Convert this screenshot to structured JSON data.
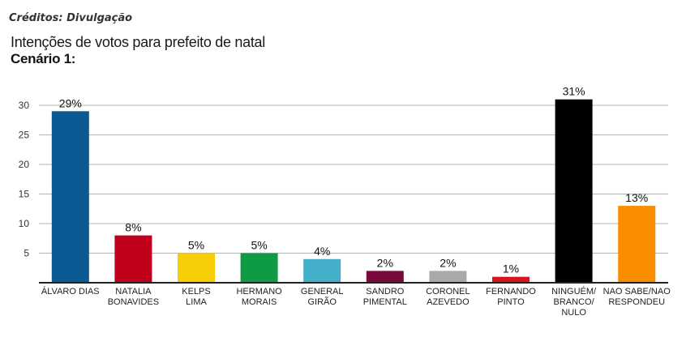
{
  "credits": "Créditos: Divulgação",
  "header": {
    "title": "Intenções de votos para prefeito de natal",
    "subtitle": "Cenário 1:"
  },
  "chart_data": {
    "type": "bar",
    "title": "Intenções de votos para prefeito de natal",
    "subtitle": "Cenário 1:",
    "xlabel": "",
    "ylabel": "",
    "ylim": [
      0,
      30
    ],
    "yticks": [
      5,
      10,
      15,
      20,
      25,
      30
    ],
    "grid": true,
    "categories": [
      [
        "ÁLVARO DIAS"
      ],
      [
        "NATALIA",
        "BONAVIDES"
      ],
      [
        "KELPS",
        "LIMA"
      ],
      [
        "HERMANO",
        "MORAIS"
      ],
      [
        "GENERAL",
        "GIRÃO"
      ],
      [
        "SANDRO",
        "PIMENTAL"
      ],
      [
        "CORONEL",
        "AZEVEDO"
      ],
      [
        "FERNANDO",
        "PINTO"
      ],
      [
        "NINGUÉM/",
        "BRANCO/",
        "NULO"
      ],
      [
        "NAO SABE/NAO",
        "RESPONDEU"
      ]
    ],
    "values": [
      29,
      8,
      5,
      5,
      4,
      2,
      2,
      1,
      31,
      13
    ],
    "value_labels": [
      "29%",
      "8%",
      "5%",
      "5%",
      "4%",
      "2%",
      "2%",
      "1%",
      "31%",
      "13%"
    ],
    "colors": [
      "#0b5a94",
      "#c0001a",
      "#f7cd05",
      "#0f9a45",
      "#43afc9",
      "#7a0a3c",
      "#a9a9a9",
      "#d8141c",
      "#000000",
      "#f98d00"
    ]
  }
}
